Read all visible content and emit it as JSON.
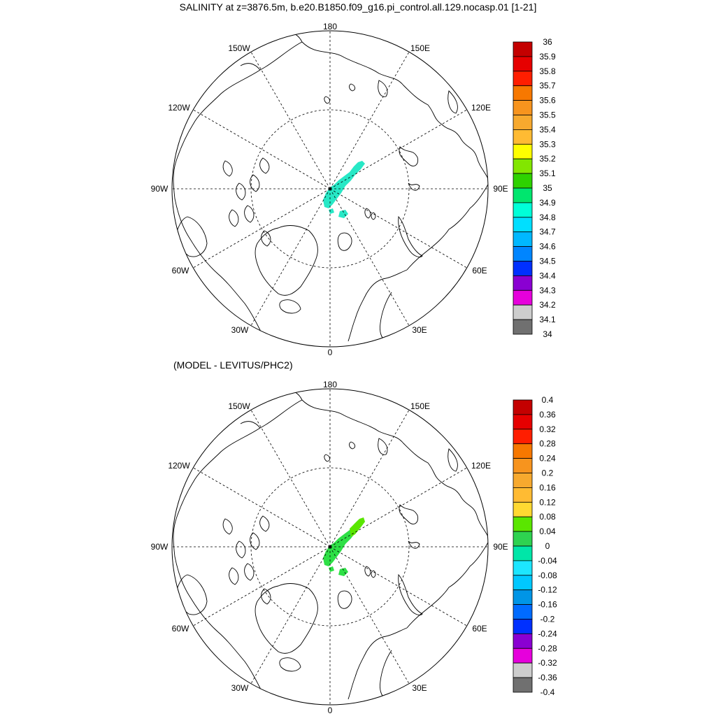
{
  "title": "SALINITY at z=3876.5m, b.e20.B1850.f09_g16.pi_control.all.129.nocasp.01 [1-21]",
  "diff_title": "(MODEL - LEVITUS/PHC2)",
  "longitude_labels": [
    "180",
    "150E",
    "120E",
    "90E",
    "60E",
    "30E",
    "0",
    "30W",
    "60W",
    "90W",
    "120W",
    "150W"
  ],
  "chart_data": [
    {
      "type": "heatmap",
      "name": "salinity",
      "projection": "north-polar-stereographic",
      "field_color": "#27e8c6",
      "colorbar": {
        "levels": [
          "36",
          "35.9",
          "35.8",
          "35.7",
          "35.6",
          "35.5",
          "35.4",
          "35.3",
          "35.2",
          "35.1",
          "35",
          "34.9",
          "34.8",
          "34.7",
          "34.6",
          "34.5",
          "34.4",
          "34.3",
          "34.2",
          "34.1",
          "34"
        ],
        "colors": [
          "#c40000",
          "#e60000",
          "#ff1e00",
          "#f77800",
          "#f7941e",
          "#f7a92e",
          "#ffbb33",
          "#ffff00",
          "#82e600",
          "#2ed200",
          "#00e66e",
          "#00ffd8",
          "#00dfff",
          "#00b8ff",
          "#0085ff",
          "#0030ff",
          "#8a00d2",
          "#e600dc",
          "#cdcdcd",
          "#707070"
        ]
      }
    },
    {
      "type": "heatmap",
      "name": "model-minus-levitus",
      "projection": "north-polar-stereographic",
      "field_color": "#2ee046",
      "field_color_secondary": "#5ae600",
      "colorbar": {
        "levels": [
          "0.4",
          "0.36",
          "0.32",
          "0.28",
          "0.24",
          "0.2",
          "0.16",
          "0.12",
          "0.08",
          "0.04",
          "0",
          "-0.04",
          "-0.08",
          "-0.12",
          "-0.16",
          "-0.2",
          "-0.24",
          "-0.28",
          "-0.32",
          "-0.36",
          "-0.4"
        ],
        "colors": [
          "#c40000",
          "#e60000",
          "#ff1e00",
          "#f77800",
          "#f7941e",
          "#f7a92e",
          "#ffbb33",
          "#ffd932",
          "#5ae600",
          "#2ed250",
          "#00e6a8",
          "#1de6ff",
          "#00c8ff",
          "#0095e6",
          "#006bff",
          "#0030ff",
          "#8a00d2",
          "#e600dc",
          "#cdcdcd",
          "#707070"
        ]
      }
    }
  ]
}
